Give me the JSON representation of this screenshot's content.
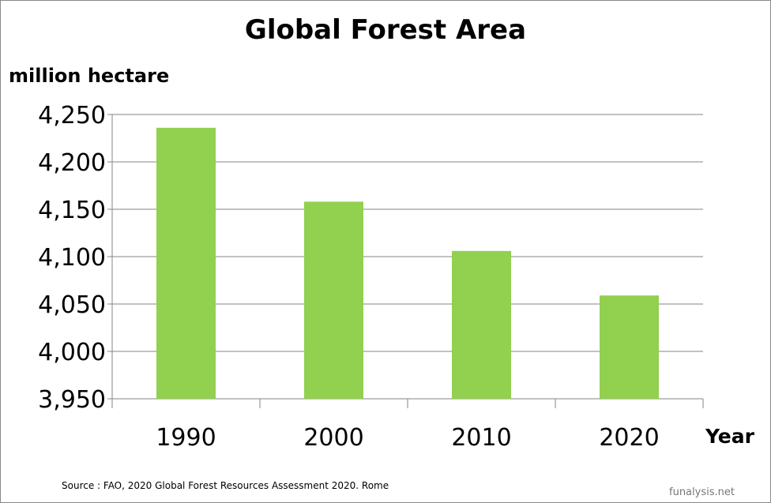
{
  "chart_data": {
    "type": "bar",
    "title": "Global Forest Area",
    "ylabel": "million hectare",
    "xlabel": "Year",
    "categories": [
      "1990",
      "2000",
      "2010",
      "2020"
    ],
    "values": [
      4236,
      4158,
      4106,
      4059
    ],
    "ylim": [
      3950,
      4250
    ],
    "yticks": [
      3950,
      4000,
      4050,
      4100,
      4150,
      4200,
      4250
    ],
    "ytick_labels": [
      "3,950",
      "4,000",
      "4,050",
      "4,100",
      "4,150",
      "4,200",
      "4,250"
    ],
    "grid": true,
    "bar_color": "#92d050"
  },
  "source": "Source : FAO, 2020  Global Forest Resources Assessment 2020. Rome",
  "brand": "funalysis.net"
}
